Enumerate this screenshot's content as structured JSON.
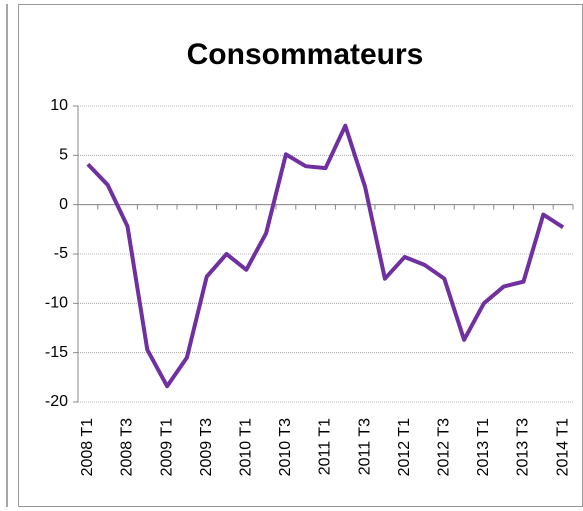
{
  "chart_data": {
    "type": "line",
    "title": "Consommateurs",
    "categories": [
      "2008 T1",
      null,
      "2008 T3",
      null,
      "2009 T1",
      null,
      "2009 T3",
      null,
      "2010 T1",
      null,
      "2010 T3",
      null,
      "2011 T1",
      null,
      "2011 T3",
      null,
      "2012 T1",
      null,
      "2012 T3",
      null,
      "2013 T1",
      null,
      "2013 T3",
      null,
      "2014 T1"
    ],
    "series": [
      {
        "name": "Consommateurs",
        "color": "#7030a0",
        "values": [
          4.1,
          2.0,
          -2.2,
          -14.7,
          -18.4,
          -15.5,
          -7.3,
          -5.0,
          -6.6,
          -2.9,
          5.1,
          3.9,
          3.7,
          8.0,
          1.8,
          -7.5,
          -5.3,
          -6.1,
          -7.5,
          -13.7,
          -10.0,
          -8.3,
          -7.8,
          -1.0,
          -2.3
        ]
      }
    ],
    "ylim": [
      -20,
      10
    ],
    "yticks": [
      -20,
      -15,
      -10,
      -5,
      0,
      5,
      10
    ],
    "grid": true
  }
}
